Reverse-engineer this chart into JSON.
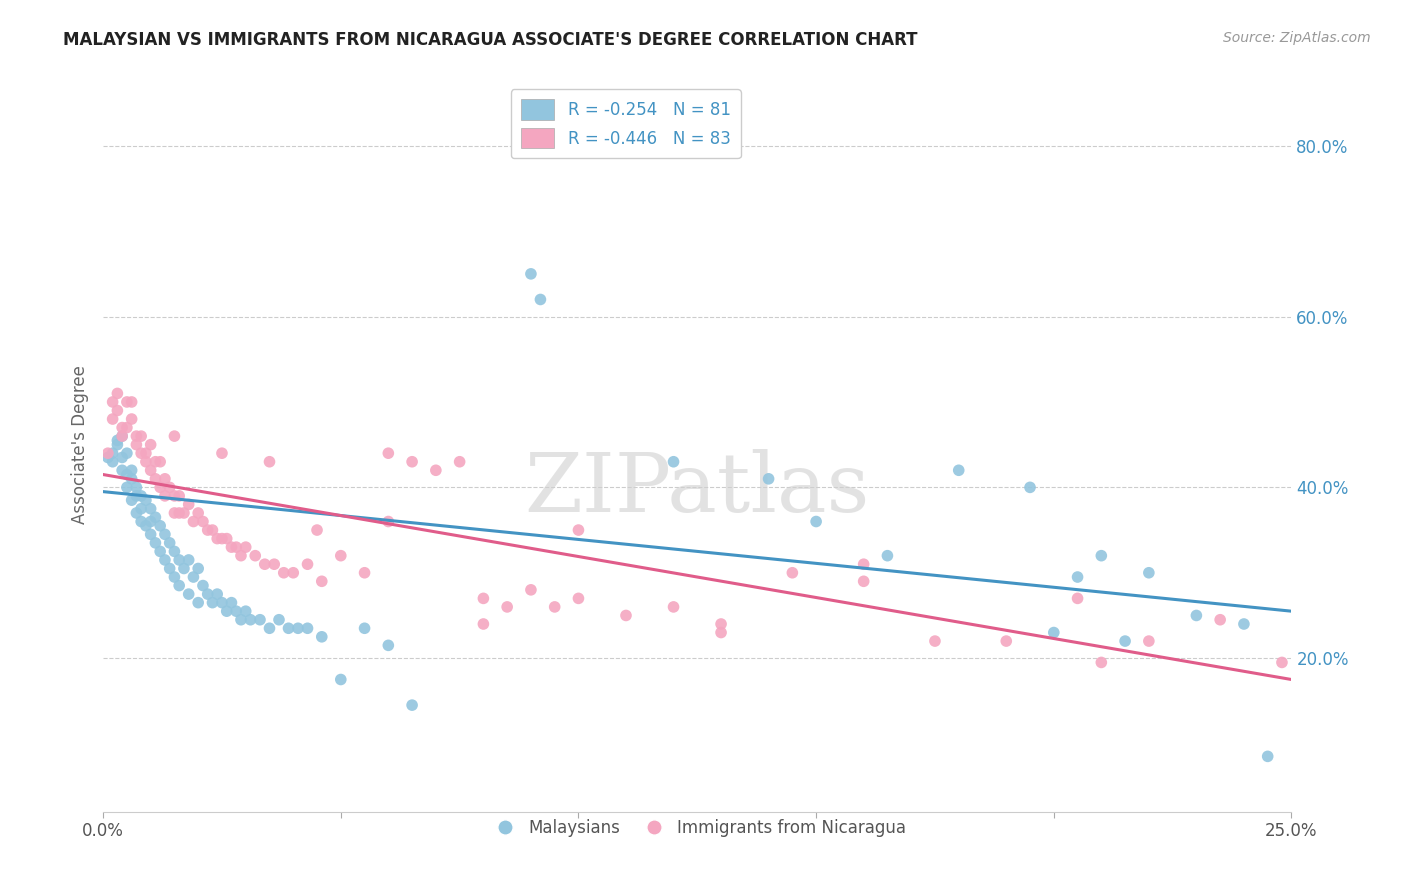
{
  "title": "MALAYSIAN VS IMMIGRANTS FROM NICARAGUA ASSOCIATE'S DEGREE CORRELATION CHART",
  "source": "Source: ZipAtlas.com",
  "ylabel": "Associate's Degree",
  "ytick_labels": [
    "20.0%",
    "40.0%",
    "60.0%",
    "80.0%"
  ],
  "ytick_values": [
    0.2,
    0.4,
    0.6,
    0.8
  ],
  "xlim": [
    0.0,
    0.25
  ],
  "ylim": [
    0.02,
    0.88
  ],
  "legend1_label": "R = -0.254   N = 81",
  "legend2_label": "R = -0.446   N = 83",
  "legend_bottom_label1": "Malaysians",
  "legend_bottom_label2": "Immigrants from Nicaragua",
  "blue_color": "#92c5de",
  "pink_color": "#f4a6c0",
  "blue_line_color": "#4393c3",
  "pink_line_color": "#e05c8a",
  "watermark": "ZIPatlas",
  "blue_line_x0": 0.0,
  "blue_line_y0": 0.395,
  "blue_line_x1": 0.25,
  "blue_line_y1": 0.255,
  "pink_line_x0": 0.0,
  "pink_line_y0": 0.415,
  "pink_line_x1": 0.25,
  "pink_line_y1": 0.175,
  "blue_scatter_x": [
    0.001,
    0.002,
    0.002,
    0.003,
    0.003,
    0.004,
    0.004,
    0.004,
    0.005,
    0.005,
    0.005,
    0.006,
    0.006,
    0.006,
    0.007,
    0.007,
    0.007,
    0.008,
    0.008,
    0.008,
    0.009,
    0.009,
    0.01,
    0.01,
    0.01,
    0.011,
    0.011,
    0.012,
    0.012,
    0.013,
    0.013,
    0.014,
    0.014,
    0.015,
    0.015,
    0.016,
    0.016,
    0.017,
    0.018,
    0.018,
    0.019,
    0.02,
    0.02,
    0.021,
    0.022,
    0.023,
    0.024,
    0.025,
    0.026,
    0.027,
    0.028,
    0.029,
    0.03,
    0.031,
    0.033,
    0.035,
    0.037,
    0.039,
    0.041,
    0.043,
    0.046,
    0.05,
    0.055,
    0.06,
    0.065,
    0.09,
    0.092,
    0.12,
    0.14,
    0.15,
    0.165,
    0.18,
    0.195,
    0.2,
    0.205,
    0.21,
    0.215,
    0.22,
    0.23,
    0.24,
    0.245
  ],
  "blue_scatter_y": [
    0.435,
    0.44,
    0.43,
    0.455,
    0.45,
    0.46,
    0.435,
    0.42,
    0.44,
    0.415,
    0.4,
    0.42,
    0.41,
    0.385,
    0.4,
    0.39,
    0.37,
    0.39,
    0.375,
    0.36,
    0.385,
    0.355,
    0.375,
    0.36,
    0.345,
    0.365,
    0.335,
    0.355,
    0.325,
    0.345,
    0.315,
    0.335,
    0.305,
    0.325,
    0.295,
    0.315,
    0.285,
    0.305,
    0.315,
    0.275,
    0.295,
    0.305,
    0.265,
    0.285,
    0.275,
    0.265,
    0.275,
    0.265,
    0.255,
    0.265,
    0.255,
    0.245,
    0.255,
    0.245,
    0.245,
    0.235,
    0.245,
    0.235,
    0.235,
    0.235,
    0.225,
    0.175,
    0.235,
    0.215,
    0.145,
    0.65,
    0.62,
    0.43,
    0.41,
    0.36,
    0.32,
    0.42,
    0.4,
    0.23,
    0.295,
    0.32,
    0.22,
    0.3,
    0.25,
    0.24,
    0.085
  ],
  "pink_scatter_x": [
    0.001,
    0.002,
    0.002,
    0.003,
    0.003,
    0.004,
    0.004,
    0.005,
    0.005,
    0.006,
    0.006,
    0.007,
    0.007,
    0.008,
    0.008,
    0.009,
    0.009,
    0.01,
    0.01,
    0.011,
    0.011,
    0.012,
    0.012,
    0.013,
    0.013,
    0.014,
    0.015,
    0.015,
    0.016,
    0.016,
    0.017,
    0.018,
    0.019,
    0.02,
    0.021,
    0.022,
    0.023,
    0.024,
    0.025,
    0.026,
    0.027,
    0.028,
    0.029,
    0.03,
    0.032,
    0.034,
    0.036,
    0.038,
    0.04,
    0.043,
    0.046,
    0.05,
    0.055,
    0.06,
    0.065,
    0.07,
    0.075,
    0.08,
    0.085,
    0.09,
    0.095,
    0.1,
    0.11,
    0.12,
    0.13,
    0.145,
    0.16,
    0.175,
    0.19,
    0.205,
    0.22,
    0.235,
    0.248,
    0.015,
    0.025,
    0.035,
    0.045,
    0.06,
    0.08,
    0.1,
    0.13,
    0.16,
    0.21
  ],
  "pink_scatter_y": [
    0.44,
    0.5,
    0.48,
    0.51,
    0.49,
    0.47,
    0.46,
    0.5,
    0.47,
    0.5,
    0.48,
    0.46,
    0.45,
    0.46,
    0.44,
    0.44,
    0.43,
    0.45,
    0.42,
    0.43,
    0.41,
    0.43,
    0.4,
    0.41,
    0.39,
    0.4,
    0.39,
    0.37,
    0.39,
    0.37,
    0.37,
    0.38,
    0.36,
    0.37,
    0.36,
    0.35,
    0.35,
    0.34,
    0.34,
    0.34,
    0.33,
    0.33,
    0.32,
    0.33,
    0.32,
    0.31,
    0.31,
    0.3,
    0.3,
    0.31,
    0.29,
    0.32,
    0.3,
    0.44,
    0.43,
    0.42,
    0.43,
    0.27,
    0.26,
    0.28,
    0.26,
    0.27,
    0.25,
    0.26,
    0.24,
    0.3,
    0.29,
    0.22,
    0.22,
    0.27,
    0.22,
    0.245,
    0.195,
    0.46,
    0.44,
    0.43,
    0.35,
    0.36,
    0.24,
    0.35,
    0.23,
    0.31,
    0.195
  ]
}
